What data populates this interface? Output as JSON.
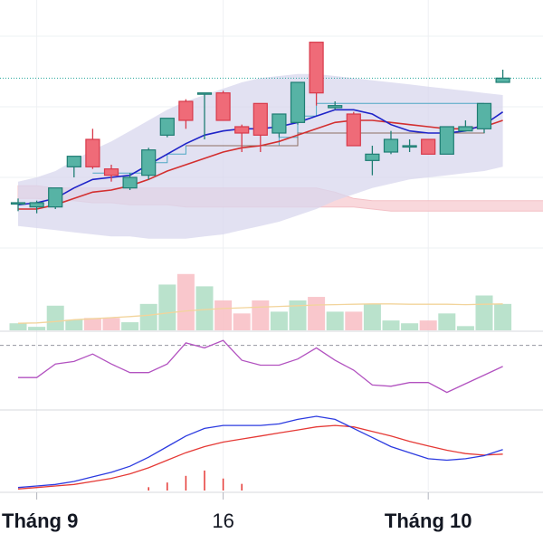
{
  "chart_data": {
    "type": "candlestick",
    "title": "",
    "grid": true,
    "x_tick_labels": [
      {
        "label": "Tháng 9",
        "bar": 1,
        "bold": true
      },
      {
        "label": "16",
        "bar": 11,
        "bold": false
      },
      {
        "label": "Tháng 10",
        "bar": 22,
        "bold": true
      }
    ],
    "price_range": [
      5.0,
      18.5
    ],
    "price_line": 14.8,
    "candles": [
      {
        "o": 8.9,
        "h": 9.1,
        "l": 8.5,
        "c": 8.9
      },
      {
        "o": 8.7,
        "h": 9.0,
        "l": 8.4,
        "c": 8.9
      },
      {
        "o": 8.7,
        "h": 9.6,
        "l": 8.6,
        "c": 9.6
      },
      {
        "o": 10.6,
        "h": 11.1,
        "l": 10.1,
        "c": 11.1
      },
      {
        "o": 11.9,
        "h": 12.4,
        "l": 10.5,
        "c": 10.6
      },
      {
        "o": 10.5,
        "h": 10.7,
        "l": 9.9,
        "c": 10.2
      },
      {
        "o": 9.6,
        "h": 10.3,
        "l": 9.5,
        "c": 10.1
      },
      {
        "o": 10.2,
        "h": 11.5,
        "l": 10.0,
        "c": 11.4
      },
      {
        "o": 12.1,
        "h": 12.9,
        "l": 12.0,
        "c": 12.9
      },
      {
        "o": 13.7,
        "h": 13.8,
        "l": 12.4,
        "c": 12.8
      },
      {
        "o": 14.1,
        "h": 14.1,
        "l": 11.9,
        "c": 14.1
      },
      {
        "o": 14.1,
        "h": 14.2,
        "l": 12.8,
        "c": 12.8
      },
      {
        "o": 12.5,
        "h": 12.6,
        "l": 11.3,
        "c": 12.2
      },
      {
        "o": 13.6,
        "h": 13.6,
        "l": 11.3,
        "c": 12.1
      },
      {
        "o": 12.2,
        "h": 13.1,
        "l": 12.0,
        "c": 13.1
      },
      {
        "o": 12.7,
        "h": 14.6,
        "l": 12.6,
        "c": 14.6
      },
      {
        "o": 16.5,
        "h": 16.5,
        "l": 13.5,
        "c": 14.1
      },
      {
        "o": 13.4,
        "h": 13.7,
        "l": 13.3,
        "c": 13.5
      },
      {
        "o": 13.1,
        "h": 13.2,
        "l": 11.6,
        "c": 11.6
      },
      {
        "o": 10.9,
        "h": 11.6,
        "l": 10.2,
        "c": 11.2
      },
      {
        "o": 11.3,
        "h": 12.3,
        "l": 11.2,
        "c": 11.9
      },
      {
        "o": 11.6,
        "h": 11.9,
        "l": 11.3,
        "c": 11.6
      },
      {
        "o": 11.9,
        "h": 11.9,
        "l": 11.2,
        "c": 11.2
      },
      {
        "o": 11.2,
        "h": 12.5,
        "l": 11.2,
        "c": 12.5
      },
      {
        "o": 12.3,
        "h": 12.8,
        "l": 12.3,
        "c": 12.5
      },
      {
        "o": 12.4,
        "h": 13.6,
        "l": 12.2,
        "c": 13.6
      },
      {
        "o": 14.6,
        "h": 15.2,
        "l": 14.6,
        "c": 14.8
      }
    ],
    "ma_fast": [
      8.8,
      8.9,
      9.1,
      9.6,
      10.0,
      10.1,
      10.2,
      10.7,
      11.2,
      11.7,
      12.1,
      12.3,
      12.4,
      12.4,
      12.5,
      12.7,
      13.0,
      13.3,
      13.3,
      13.1,
      12.6,
      12.3,
      12.2,
      12.2,
      12.3,
      12.6,
      13.2
    ],
    "ma_slow": [
      8.6,
      8.6,
      8.8,
      9.1,
      9.4,
      9.5,
      9.7,
      10.0,
      10.4,
      10.7,
      11.0,
      11.3,
      11.5,
      11.6,
      11.8,
      12.1,
      12.4,
      12.7,
      12.8,
      12.8,
      12.7,
      12.6,
      12.5,
      12.4,
      12.4,
      12.5,
      12.8
    ],
    "band_upper": [
      9.9,
      10.1,
      10.4,
      10.9,
      11.4,
      11.8,
      12.3,
      12.8,
      13.3,
      13.7,
      14.0,
      14.3,
      14.6,
      14.8,
      14.9,
      15.0,
      15.0,
      14.9,
      14.8,
      14.7,
      14.6,
      14.5,
      14.4,
      14.3,
      14.2,
      14.1,
      14.0
    ],
    "band_lower": [
      7.8,
      7.7,
      7.6,
      7.5,
      7.4,
      7.3,
      7.3,
      7.2,
      7.2,
      7.2,
      7.3,
      7.4,
      7.6,
      7.8,
      8.0,
      8.3,
      8.6,
      9.0,
      9.3,
      9.6,
      9.8,
      10.0,
      10.1,
      10.2,
      10.3,
      10.4,
      10.6
    ],
    "cloud_top": [
      9.7,
      9.7,
      9.6,
      9.6,
      9.6,
      9.6,
      9.6,
      9.6,
      9.6,
      9.6,
      9.6,
      9.6,
      9.6,
      9.6,
      9.6,
      9.6,
      9.6,
      9.4,
      9.1,
      9.0,
      9.0,
      9.0,
      9.0,
      9.0,
      9.0,
      9.0,
      9.0,
      9.0,
      9.0,
      9.0
    ],
    "cloud_bottom": [
      9.1,
      9.1,
      9.0,
      9.0,
      8.9,
      8.9,
      8.8,
      8.8,
      8.8,
      8.7,
      8.7,
      8.7,
      8.7,
      8.7,
      8.7,
      8.7,
      8.7,
      8.7,
      8.7,
      8.6,
      8.5,
      8.5,
      8.5,
      8.5,
      8.5,
      8.5,
      8.5,
      8.5,
      8.5,
      8.5
    ],
    "step_line": [
      null,
      null,
      null,
      null,
      10.3,
      10.3,
      10.3,
      10.8,
      11.2,
      11.6,
      11.6,
      11.6,
      11.6,
      11.6,
      12.0,
      13.0,
      13.6,
      13.6,
      13.6,
      13.6,
      13.6,
      13.6,
      13.6,
      13.6,
      13.6,
      13.6,
      null
    ],
    "trail_line": [
      null,
      null,
      null,
      null,
      null,
      null,
      null,
      null,
      null,
      11.6,
      11.6,
      11.6,
      11.6,
      11.6,
      11.6,
      12.2,
      12.2,
      12.2,
      12.2,
      12.2,
      12.2,
      12.2,
      12.2,
      12.2,
      12.2,
      12.4,
      null
    ],
    "volume": [
      2,
      1,
      7,
      3,
      3.5,
      3.5,
      2.3,
      7.5,
      13,
      16,
      12.5,
      8.5,
      4.8,
      8.5,
      5.3,
      8.5,
      9.5,
      5.3,
      5.3,
      7.5,
      2.8,
      2,
      2.8,
      4.8,
      1.2,
      9.9,
      7.5
    ],
    "volume_ma": [
      2.0,
      2.1,
      2.5,
      3.0,
      3.3,
      3.6,
      3.9,
      4.3,
      4.9,
      5.5,
      5.9,
      6.2,
      6.4,
      6.6,
      6.8,
      7.0,
      7.2,
      7.3,
      7.4,
      7.5,
      7.5,
      7.4,
      7.4,
      7.4,
      7.3,
      7.4,
      7.5
    ],
    "volume_max": 18,
    "rsi": [
      44,
      44,
      55,
      57,
      63,
      55,
      48,
      48,
      55,
      72,
      68,
      74,
      58,
      54,
      54,
      59,
      68,
      58,
      50,
      38,
      37,
      40,
      40,
      32,
      39,
      46,
      53
    ],
    "rsi_range": [
      20,
      80
    ],
    "rsi_mid": 70,
    "macd": [
      -0.9,
      -0.85,
      -0.8,
      -0.7,
      -0.55,
      -0.4,
      -0.2,
      0.1,
      0.45,
      0.8,
      1.05,
      1.15,
      1.15,
      1.15,
      1.2,
      1.35,
      1.45,
      1.35,
      1.05,
      0.75,
      0.45,
      0.25,
      0.05,
      0.0,
      0.05,
      0.15,
      0.35
    ],
    "macd_signal": [
      -0.95,
      -0.9,
      -0.85,
      -0.8,
      -0.7,
      -0.6,
      -0.45,
      -0.25,
      0.0,
      0.25,
      0.45,
      0.6,
      0.7,
      0.8,
      0.9,
      1.0,
      1.1,
      1.15,
      1.1,
      0.95,
      0.8,
      0.62,
      0.47,
      0.33,
      0.22,
      0.17,
      0.2
    ],
    "macd_hist": [
      0,
      0,
      0,
      0,
      0,
      0,
      0,
      0.05,
      0.12,
      0.22,
      0.3,
      0.18,
      0.1,
      0,
      0,
      0,
      0,
      0,
      0,
      0,
      0,
      0,
      0,
      0,
      0,
      0,
      0
    ],
    "macd_range": [
      -1.0,
      1.6
    ],
    "colors": {
      "up": "#26a69a",
      "down": "#ef5350",
      "up_body": "#57b3a5",
      "down_body": "#ef6b78",
      "ma_fast": "#1e23c8",
      "ma_slow": "#d32f2f",
      "band_fill": "#d8d7ee",
      "cloud_fill": "#f9d2d6",
      "step_line": "#4ea8c4",
      "trail_line": "#8d6e63",
      "volume_up": "#b2dfc7",
      "volume_down": "#f8c1c6",
      "volume_ma": "#f2d49b",
      "rsi": "#b252c0",
      "macd": "#2c3be0",
      "macd_signal": "#e53935",
      "macd_hist": "#e53935",
      "grid": "#eef0f3",
      "separator": "#d7d9de",
      "text": "#131722"
    }
  }
}
